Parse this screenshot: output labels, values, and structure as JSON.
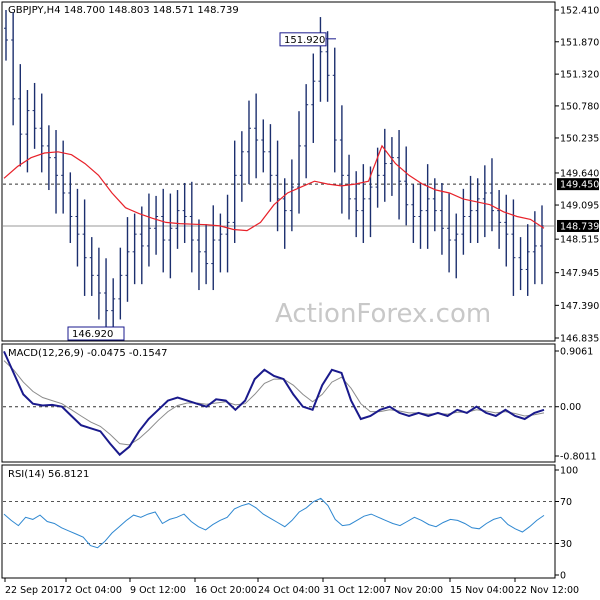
{
  "chart_data": [
    {
      "panel": "price",
      "type": "ohlc",
      "title": "GBPJPY,H4  148.700 148.803 148.571 148.739",
      "ylim": [
        146.835,
        152.41
      ],
      "yticks": [
        "152.410",
        "151.870",
        "151.320",
        "150.780",
        "150.235",
        "149.640",
        "149.095",
        "148.515",
        "147.945",
        "147.390",
        "146.835"
      ],
      "ytick_values": [
        152.41,
        151.87,
        151.32,
        150.78,
        150.235,
        149.64,
        149.095,
        148.515,
        147.945,
        147.39,
        146.835
      ],
      "close": [
        151.9,
        150.9,
        150.3,
        150.7,
        150.4,
        150.1,
        149.9,
        149.6,
        149.3,
        148.9,
        148.6,
        148.2,
        147.9,
        147.6,
        147.3,
        147.5,
        147.9,
        148.3,
        148.6,
        148.4,
        148.7,
        148.9,
        148.5,
        148.7,
        149.0,
        148.9,
        148.5,
        148.3,
        148.1,
        148.5,
        148.6,
        148.8,
        149.6,
        150.0,
        150.4,
        150.2,
        150.0,
        149.6,
        149.2,
        149.0,
        149.4,
        150.1,
        150.8,
        151.2,
        151.7,
        151.3,
        150.2,
        149.6,
        149.2,
        149.0,
        149.2,
        149.4,
        149.6,
        149.8,
        149.9,
        149.5,
        149.1,
        148.9,
        149.0,
        149.2,
        149.0,
        148.7,
        148.5,
        148.6,
        148.9,
        149.0,
        149.2,
        149.3,
        149.0,
        148.8,
        148.6,
        148.2,
        148.0,
        148.3,
        148.4,
        148.739
      ],
      "ma_line": [
        149.55,
        149.75,
        149.9,
        149.98,
        150.0,
        149.95,
        149.8,
        149.6,
        149.3,
        149.05,
        148.95,
        148.87,
        148.8,
        148.78,
        148.77,
        148.76,
        148.74,
        148.68,
        148.66,
        148.8,
        149.1,
        149.3,
        149.4,
        149.5,
        149.45,
        149.42,
        149.45,
        149.5,
        150.1,
        149.8,
        149.6,
        149.45,
        149.35,
        149.3,
        149.2,
        149.15,
        149.1,
        148.98,
        148.9,
        148.85,
        148.7
      ],
      "resistance_line": 149.45,
      "current_price_line": 148.739,
      "price_labels": [
        "151.920",
        "146.920"
      ],
      "tag_values": [
        "149.450",
        "148.739"
      ],
      "ma_color": "#e8222a",
      "bar_color": "#1c2f6e",
      "tag_color": "#000000"
    },
    {
      "panel": "macd",
      "type": "line",
      "title": "MACD(12,26,9) -0.0475 -0.1547",
      "ylim": [
        -0.8011,
        0.9061
      ],
      "yticks": [
        "0.9061",
        "0.00",
        "-0.8011"
      ],
      "ytick_values": [
        0.9061,
        0.0,
        -0.8011
      ],
      "series": [
        {
          "role": "macd",
          "color": "#1a1a8c",
          "values": [
            0.9,
            0.55,
            0.2,
            0.05,
            0.02,
            0.03,
            0.0,
            -0.15,
            -0.3,
            -0.35,
            -0.4,
            -0.6,
            -0.78,
            -0.65,
            -0.4,
            -0.2,
            -0.05,
            0.1,
            0.15,
            0.1,
            0.05,
            0.0,
            0.12,
            0.1,
            -0.05,
            0.1,
            0.45,
            0.6,
            0.5,
            0.45,
            0.2,
            0.0,
            -0.05,
            0.35,
            0.6,
            0.55,
            0.1,
            -0.2,
            -0.15,
            -0.05,
            0.0,
            -0.1,
            -0.15,
            -0.1,
            -0.15,
            -0.1,
            -0.15,
            -0.05,
            -0.1,
            0.0,
            -0.1,
            -0.15,
            -0.05,
            -0.15,
            -0.2,
            -0.1,
            -0.05
          ]
        },
        {
          "role": "signal",
          "color": "#8c8c8c",
          "values": [
            0.75,
            0.6,
            0.4,
            0.25,
            0.15,
            0.1,
            0.05,
            -0.05,
            -0.15,
            -0.25,
            -0.32,
            -0.45,
            -0.6,
            -0.62,
            -0.52,
            -0.38,
            -0.22,
            -0.08,
            0.02,
            0.06,
            0.06,
            0.04,
            0.06,
            0.08,
            0.03,
            0.05,
            0.2,
            0.38,
            0.45,
            0.45,
            0.35,
            0.2,
            0.08,
            0.2,
            0.4,
            0.48,
            0.3,
            0.05,
            -0.08,
            -0.08,
            -0.05,
            -0.07,
            -0.1,
            -0.1,
            -0.12,
            -0.11,
            -0.12,
            -0.09,
            -0.09,
            -0.05,
            -0.07,
            -0.1,
            -0.08,
            -0.11,
            -0.15,
            -0.13,
            -0.1
          ]
        }
      ]
    },
    {
      "panel": "rsi",
      "type": "line",
      "title": "RSI(14) 56.8121",
      "ylim": [
        0,
        100
      ],
      "yticks": [
        "100",
        "70",
        "30",
        "0"
      ],
      "ytick_values": [
        100,
        70,
        30,
        0
      ],
      "levels": [
        70,
        30
      ],
      "series": [
        {
          "role": "rsi",
          "color": "#2f88d1",
          "values": [
            58,
            52,
            47,
            55,
            53,
            57,
            51,
            49,
            45,
            42,
            39,
            36,
            28,
            26,
            32,
            40,
            46,
            52,
            57,
            55,
            58,
            60,
            49,
            53,
            55,
            58,
            51,
            46,
            43,
            48,
            52,
            55,
            63,
            66,
            68,
            64,
            58,
            54,
            50,
            46,
            52,
            60,
            64,
            70,
            73,
            66,
            53,
            47,
            48,
            52,
            56,
            58,
            55,
            52,
            49,
            47,
            51,
            55,
            52,
            48,
            46,
            50,
            53,
            52,
            49,
            45,
            44,
            49,
            53,
            55,
            48,
            44,
            41,
            46,
            52,
            56.8
          ]
        }
      ]
    }
  ],
  "x_axis": {
    "labels": [
      "22 Sep 2017",
      "2 Oct 04:00",
      "9 Oct 12:00",
      "16 Oct 20:00",
      "24 Oct 04:00",
      "31 Oct 12:00",
      "7 Nov 20:00",
      "15 Nov 04:00",
      "22 Nov 12:00"
    ]
  },
  "watermark": "ActionForex.com",
  "colors": {
    "grid_dash": "#333333",
    "panel_border": "#000000",
    "background": "#ffffff"
  }
}
